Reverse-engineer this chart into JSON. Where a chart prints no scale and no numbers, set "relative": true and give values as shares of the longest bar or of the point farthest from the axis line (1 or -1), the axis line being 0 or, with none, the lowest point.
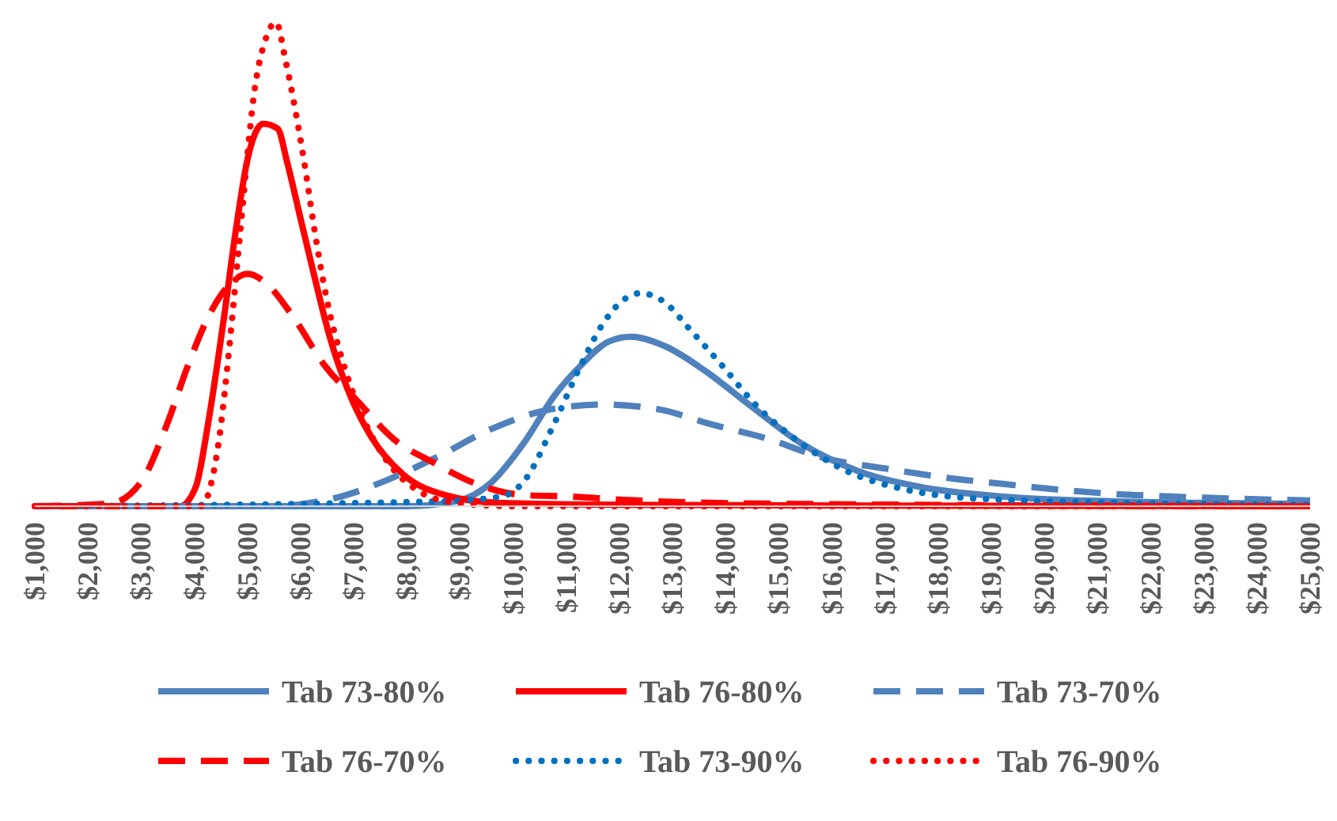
{
  "chart_data": {
    "type": "line",
    "relative": true,
    "xlim": [
      1000,
      25000
    ],
    "xticks": [
      {
        "value": 1000,
        "label": "$1,000"
      },
      {
        "value": 2000,
        "label": "$2,000"
      },
      {
        "value": 3000,
        "label": "$3,000"
      },
      {
        "value": 4000,
        "label": "$4,000"
      },
      {
        "value": 5000,
        "label": "$5,000"
      },
      {
        "value": 6000,
        "label": "$6,000"
      },
      {
        "value": 7000,
        "label": "$7,000"
      },
      {
        "value": 8000,
        "label": "$8,000"
      },
      {
        "value": 9000,
        "label": "$9,000"
      },
      {
        "value": 10000,
        "label": "$10,000"
      },
      {
        "value": 11000,
        "label": "$11,000"
      },
      {
        "value": 12000,
        "label": "$12,000"
      },
      {
        "value": 13000,
        "label": "$13,000"
      },
      {
        "value": 14000,
        "label": "$14,000"
      },
      {
        "value": 15000,
        "label": "$15,000"
      },
      {
        "value": 16000,
        "label": "$16,000"
      },
      {
        "value": 17000,
        "label": "$17,000"
      },
      {
        "value": 18000,
        "label": "$18,000"
      },
      {
        "value": 19000,
        "label": "$19,000"
      },
      {
        "value": 20000,
        "label": "$20,000"
      },
      {
        "value": 21000,
        "label": "$21,000"
      },
      {
        "value": 22000,
        "label": "$22,000"
      },
      {
        "value": 23000,
        "label": "$23,000"
      },
      {
        "value": 24000,
        "label": "$24,000"
      },
      {
        "value": 25000,
        "label": "$25,000"
      }
    ],
    "legend": "bottom",
    "series": [
      {
        "name": "Tab 73-80%",
        "color": "#4f81bd",
        "line_style": "solid",
        "x": [
          1000,
          8000,
          8920,
          9600,
          10200,
          10790,
          11270,
          11800,
          12220,
          12870,
          13610,
          14440,
          15420,
          16460,
          17650,
          19220,
          21360,
          25000
        ],
        "values": [
          0,
          0,
          0.01,
          0.05,
          0.13,
          0.23,
          0.29,
          0.34,
          0.35,
          0.33,
          0.28,
          0.21,
          0.13,
          0.074,
          0.04,
          0.02,
          0.01,
          0.005
        ]
      },
      {
        "name": "Tab 76-80%",
        "color": "#ff0000",
        "line_style": "solid",
        "x": [
          1000,
          3730,
          4030,
          4260,
          4560,
          4770,
          5010,
          5300,
          5570,
          5750,
          6010,
          6250,
          6550,
          6930,
          7350,
          7940,
          8720,
          9720,
          12000,
          25000
        ],
        "values": [
          0,
          0,
          0.04,
          0.17,
          0.39,
          0.56,
          0.72,
          0.79,
          0.78,
          0.71,
          0.59,
          0.48,
          0.35,
          0.23,
          0.14,
          0.065,
          0.023,
          0.007,
          0.003,
          0
        ]
      },
      {
        "name": "Tab 73-70%",
        "color": "#4f81bd",
        "line_style": "dashed",
        "x": [
          1000,
          5500,
          6340,
          6760,
          7650,
          8540,
          9600,
          10700,
          11710,
          12750,
          13700,
          14770,
          15840,
          17000,
          18150,
          19220,
          20290,
          21360,
          22400,
          24530,
          25000
        ],
        "values": [
          0,
          0,
          0.01,
          0.02,
          0.055,
          0.1,
          0.16,
          0.2,
          0.21,
          0.2,
          0.17,
          0.14,
          0.1,
          0.078,
          0.059,
          0.046,
          0.034,
          0.025,
          0.02,
          0.013,
          0.012
        ]
      },
      {
        "name": "Tab 76-70%",
        "color": "#ff0000",
        "line_style": "dashed",
        "x": [
          1000,
          2400,
          3000,
          3490,
          3880,
          4260,
          4680,
          5010,
          5360,
          5870,
          6460,
          7050,
          7740,
          8540,
          9220,
          10200,
          11060,
          12100,
          15000,
          25000
        ],
        "values": [
          0,
          0.005,
          0.05,
          0.17,
          0.29,
          0.39,
          0.46,
          0.48,
          0.46,
          0.39,
          0.29,
          0.22,
          0.14,
          0.088,
          0.05,
          0.023,
          0.02,
          0.013,
          0.005,
          0
        ]
      },
      {
        "name": "Tab 73-90%",
        "color": "#0070c0",
        "line_style": "dotted",
        "x": [
          1000,
          8630,
          9780,
          10230,
          10730,
          11270,
          11710,
          12010,
          12390,
          12870,
          13290,
          13940,
          14560,
          15420,
          16250,
          17320,
          18680,
          21360,
          25000
        ],
        "values": [
          0,
          0.01,
          0.02,
          0.055,
          0.16,
          0.29,
          0.38,
          0.42,
          0.44,
          0.42,
          0.37,
          0.29,
          0.21,
          0.13,
          0.074,
          0.036,
          0.016,
          0.007,
          0.003
        ]
      },
      {
        "name": "Tab 76-90%",
        "color": "#ff0000",
        "line_style": "dotted",
        "x": [
          1000,
          4120,
          4470,
          4680,
          4860,
          5150,
          5360,
          5540,
          5720,
          5900,
          6100,
          6250,
          6490,
          6850,
          7230,
          7650,
          8240,
          8920,
          10000,
          25000
        ],
        "values": [
          0,
          0,
          0.14,
          0.35,
          0.56,
          0.87,
          0.97,
          1,
          0.92,
          0.82,
          0.69,
          0.58,
          0.43,
          0.28,
          0.17,
          0.09,
          0.03,
          0.007,
          0,
          0
        ]
      }
    ]
  }
}
